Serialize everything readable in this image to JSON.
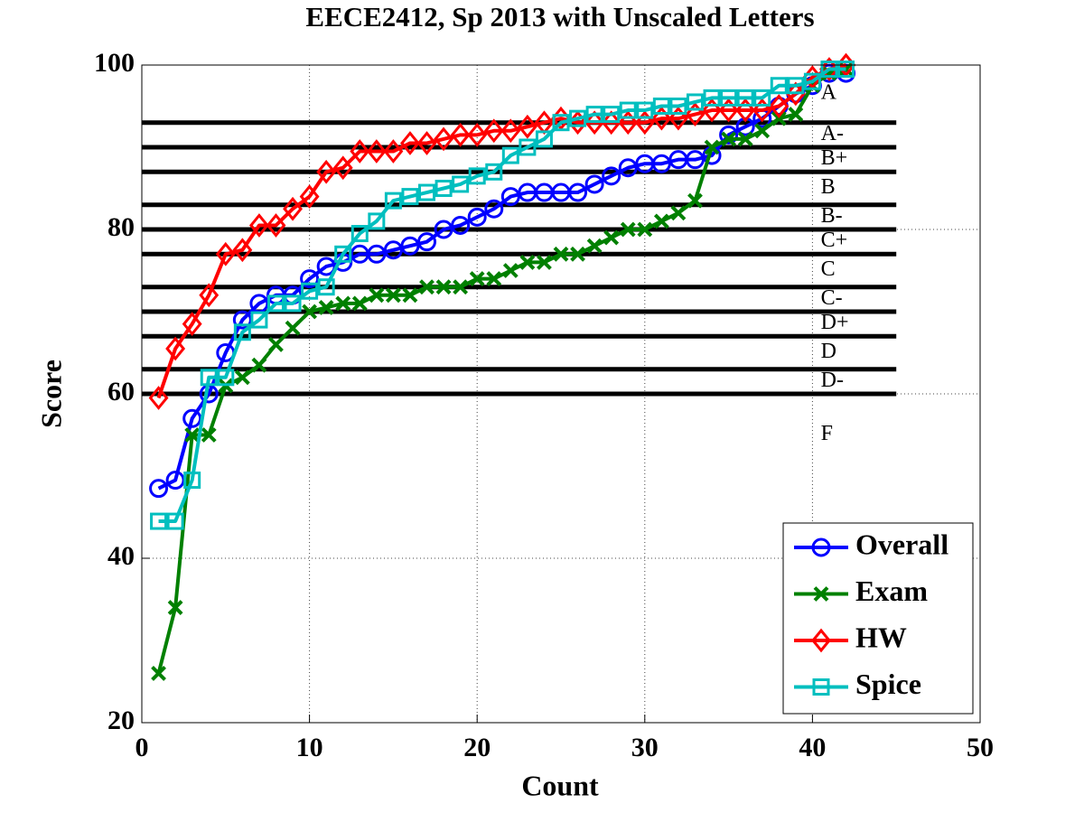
{
  "chart_data": {
    "type": "line",
    "title": "EECE2412, Sp 2013 with Unscaled Letters",
    "x_label": "Count",
    "y_label": "Score",
    "x": [
      1,
      2,
      3,
      4,
      5,
      6,
      7,
      8,
      9,
      10,
      11,
      12,
      13,
      14,
      15,
      16,
      17,
      18,
      19,
      20,
      21,
      22,
      23,
      24,
      25,
      26,
      27,
      28,
      29,
      30,
      31,
      32,
      33,
      34,
      35,
      36,
      37,
      38,
      39,
      40,
      41,
      42
    ],
    "series": [
      {
        "name": "Overall",
        "color": "#0000ff",
        "marker": "circle",
        "values": [
          48.5,
          49.5,
          57,
          60,
          65,
          69,
          71,
          72,
          72,
          74,
          75.5,
          76,
          77,
          77,
          77.5,
          78,
          78.5,
          80,
          80.5,
          81.5,
          82.5,
          84,
          84.5,
          84.5,
          84.5,
          84.5,
          85.5,
          86.5,
          87.5,
          88,
          88,
          88.5,
          88.5,
          89,
          91.5,
          92.5,
          93.5,
          95,
          96.5,
          97.5,
          99,
          99
        ]
      },
      {
        "name": "Exam",
        "color": "#008000",
        "marker": "x",
        "values": [
          26,
          34,
          55,
          55,
          61,
          62,
          63.5,
          66,
          68,
          70,
          70.5,
          71,
          71,
          72,
          72,
          72,
          73,
          73,
          73,
          74,
          74,
          75,
          76,
          76,
          77,
          77,
          78,
          79,
          80,
          80,
          81,
          82,
          83.5,
          90,
          91,
          91,
          92,
          93.5,
          94,
          97.5,
          99,
          99.5
        ]
      },
      {
        "name": "HW",
        "color": "#ff0000",
        "marker": "diamond",
        "values": [
          59.5,
          65.5,
          68.5,
          72,
          77,
          77.5,
          80.5,
          80.5,
          82.5,
          84,
          87,
          87.5,
          89.5,
          89.5,
          89.5,
          90.5,
          90.5,
          91,
          91.5,
          91.5,
          92,
          92,
          92.5,
          93,
          93.5,
          93,
          93,
          93,
          93,
          93,
          93.5,
          93.5,
          94,
          94.5,
          94.5,
          94.5,
          94.5,
          95,
          96.5,
          98.5,
          99.5,
          100
        ]
      },
      {
        "name": "Spice",
        "color": "#00bfbf",
        "marker": "square",
        "values": [
          44.5,
          44.5,
          49.5,
          62,
          62,
          67.5,
          69,
          71,
          71,
          72.5,
          73,
          77,
          79.5,
          81,
          83.5,
          84,
          84.5,
          85,
          85.5,
          86.5,
          87,
          89,
          90,
          91,
          93,
          93.5,
          94,
          94,
          94.5,
          94.5,
          95,
          95,
          95.5,
          96,
          96,
          96,
          96,
          97.5,
          97.5,
          98,
          99.5,
          99.5
        ]
      }
    ],
    "grade_lines": {
      "values": [
        93,
        90,
        87,
        83,
        80,
        77,
        73,
        70,
        67,
        63,
        60
      ],
      "x_end": 45,
      "color": "#000000"
    },
    "grade_labels": [
      {
        "label": "A",
        "x": 40.5,
        "y": 96.5
      },
      {
        "label": "A-",
        "x": 40.5,
        "y": 91.5
      },
      {
        "label": "B+",
        "x": 40.5,
        "y": 88.5
      },
      {
        "label": "B",
        "x": 40.5,
        "y": 85
      },
      {
        "label": "B-",
        "x": 40.5,
        "y": 81.5
      },
      {
        "label": "C+",
        "x": 40.5,
        "y": 78.5
      },
      {
        "label": "C",
        "x": 40.5,
        "y": 75
      },
      {
        "label": "C-",
        "x": 40.5,
        "y": 71.5
      },
      {
        "label": "D+",
        "x": 40.5,
        "y": 68.5
      },
      {
        "label": "D",
        "x": 40.5,
        "y": 65
      },
      {
        "label": "D-",
        "x": 40.5,
        "y": 61.5
      },
      {
        "label": "F",
        "x": 40.5,
        "y": 55
      }
    ],
    "xlim": [
      0,
      50
    ],
    "ylim": [
      20,
      100
    ],
    "xticks": [
      0,
      10,
      20,
      30,
      40,
      50
    ],
    "yticks": [
      20,
      40,
      60,
      80,
      100
    ],
    "grid": true,
    "legend": "lower right"
  }
}
